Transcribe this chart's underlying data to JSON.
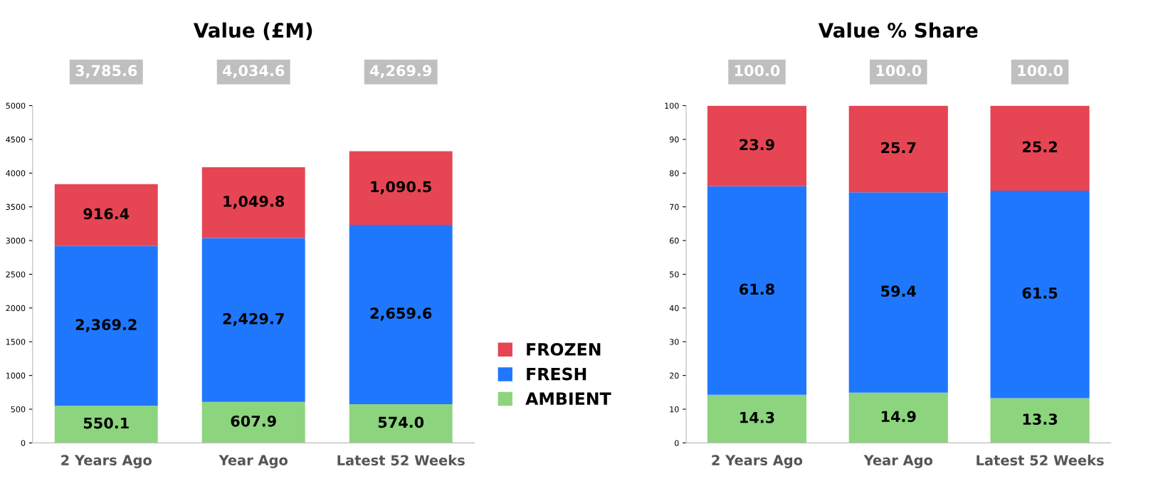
{
  "chart_data": [
    {
      "type": "bar",
      "title": "Value (£M)",
      "stacked": true,
      "categories": [
        "2 Years Ago",
        "Year Ago",
        "Latest 52 Weeks"
      ],
      "series": [
        {
          "name": "AMBIENT",
          "color": "#8cd47e",
          "values": [
            550.1,
            607.9,
            574.0
          ],
          "value_labels": [
            "550.1",
            "607.9",
            "574.0"
          ]
        },
        {
          "name": "FRESH",
          "color": "#1f77fe",
          "values": [
            2369.2,
            2429.7,
            2659.6
          ],
          "value_labels": [
            "2,369.2",
            "2,429.7",
            "2,659.6"
          ]
        },
        {
          "name": "FROZEN",
          "color": "#e64553",
          "values": [
            916.4,
            1049.8,
            1090.5
          ],
          "value_labels": [
            "916.4",
            "1,049.8",
            "1,090.5"
          ]
        }
      ],
      "annotations": [
        "3,785.6",
        "4,034.6",
        "4,269.9"
      ],
      "ylim": [
        0,
        5000
      ],
      "yticks": [
        0,
        500,
        1000,
        1500,
        2000,
        2500,
        3000,
        3500,
        4000,
        4500,
        5000
      ],
      "grid": false,
      "legend": "right"
    },
    {
      "type": "bar",
      "title": "Value % Share",
      "stacked": true,
      "categories": [
        "2 Years Ago",
        "Year Ago",
        "Latest 52 Weeks"
      ],
      "series": [
        {
          "color": "#8cd47e",
          "values": [
            14.3,
            14.9,
            13.3
          ]
        },
        {
          "color": "#1f77fe",
          "values": [
            61.8,
            59.4,
            61.5
          ]
        },
        {
          "color": "#e64553",
          "values": [
            23.9,
            25.7,
            25.2
          ]
        }
      ],
      "data_labels": true,
      "annotations": [
        "100.0",
        "100.0",
        "100.0"
      ],
      "ylim": [
        0,
        100
      ],
      "yticks": [
        0,
        10,
        20,
        30,
        40,
        50,
        60,
        70,
        80,
        90,
        100
      ],
      "grid": false,
      "legend": false
    }
  ]
}
